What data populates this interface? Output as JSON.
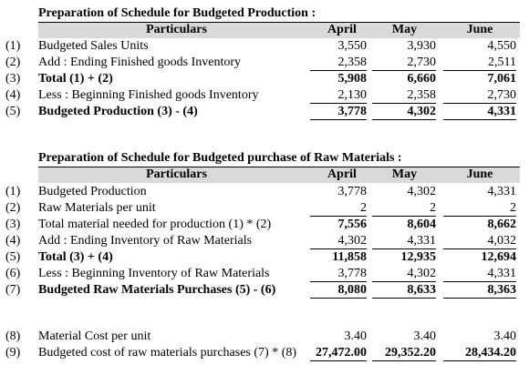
{
  "tables": [
    {
      "title": "Preparation of Schedule for Budgeted Production :",
      "header": [
        "Particulars",
        "April",
        "May",
        "June"
      ],
      "rows": [
        {
          "num": "(1)",
          "label": "Budgeted Sales Units",
          "values": [
            "3,550",
            "3,930",
            "4,550"
          ]
        },
        {
          "num": "(2)",
          "label": "Add : Ending Finished goods Inventory",
          "values": [
            "2,358",
            "2,730",
            "2,511"
          ]
        },
        {
          "num": "(3)",
          "label": "Total (1) + (2)",
          "values": [
            "5,908",
            "6,660",
            "7,061"
          ]
        },
        {
          "num": "(4)",
          "label": "Less : Beginning Finished goods Inventory",
          "values": [
            "2,130",
            "2,358",
            "2,730"
          ]
        },
        {
          "num": "(5)",
          "label": "Budgeted Production (3) - (4)",
          "values": [
            "3,778",
            "4,302",
            "4,331"
          ]
        }
      ]
    },
    {
      "title": "Preparation of Schedule for Budgeted purchase of Raw Materials :",
      "header": [
        "Particulars",
        "April",
        "May",
        "June"
      ],
      "rows": [
        {
          "num": "(1)",
          "label": "Budgeted Production",
          "values": [
            "3,778",
            "4,302",
            "4,331"
          ]
        },
        {
          "num": "(2)",
          "label": "Raw Materials per unit",
          "values": [
            "2",
            "2",
            "2"
          ]
        },
        {
          "num": "(3)",
          "label": "Total material needed for production (1) * (2)",
          "values": [
            "7,556",
            "8,604",
            "8,662"
          ]
        },
        {
          "num": "(4)",
          "label": "Add : Ending Inventory of Raw Materials",
          "values": [
            "4,302",
            "4,331",
            "4,032"
          ]
        },
        {
          "num": "(5)",
          "label": "Total (3) + (4)",
          "values": [
            "11,858",
            "12,935",
            "12,694"
          ]
        },
        {
          "num": "(6)",
          "label": "Less : Beginning Inventory of Raw Materials",
          "values": [
            "3,778",
            "4,302",
            "4,331"
          ]
        },
        {
          "num": "(7)",
          "label": "Budgeted Raw Materials Purchases (5) - (6)",
          "values": [
            "8,080",
            "8,633",
            "8,363"
          ]
        },
        {
          "num": "(8)",
          "label": "Material Cost per unit",
          "values": [
            "3.40",
            "3.40",
            "3.40"
          ]
        },
        {
          "num": "(9)",
          "label": "Budgeted cost of raw materials purchases (7) * (8)",
          "values": [
            "27,472.00",
            "29,352.20",
            "28,434.20"
          ]
        }
      ]
    }
  ]
}
